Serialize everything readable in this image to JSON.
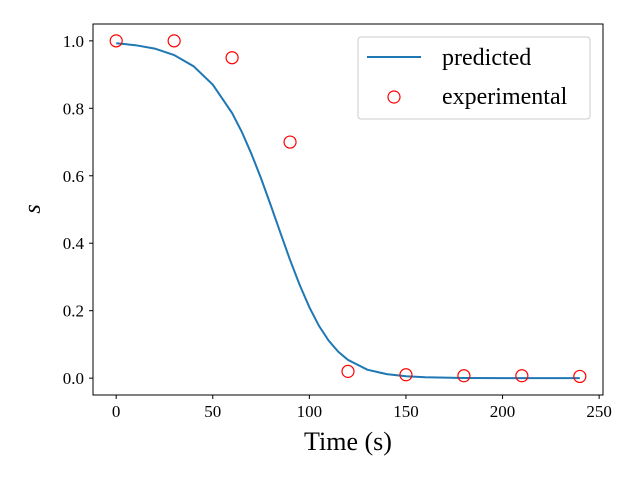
{
  "chart_data": {
    "type": "line",
    "title": "",
    "xlabel": "Time (s)",
    "ylabel": "s",
    "xlim": [
      -12,
      252
    ],
    "ylim": [
      -0.05,
      1.05
    ],
    "xticks": [
      0,
      50,
      100,
      150,
      200,
      250
    ],
    "xtick_labels": [
      "0",
      "50",
      "100",
      "150",
      "200",
      "250"
    ],
    "yticks": [
      0.0,
      0.2,
      0.4,
      0.6,
      0.8,
      1.0
    ],
    "ytick_labels": [
      "0.0",
      "0.2",
      "0.4",
      "0.6",
      "0.8",
      "1.0"
    ],
    "grid": false,
    "legend_position": "top-right",
    "series": [
      {
        "name": "predicted",
        "kind": "line",
        "color": "#1f77b4",
        "x": [
          0,
          10,
          20,
          30,
          40,
          50,
          60,
          65,
          70,
          75,
          80,
          85,
          90,
          95,
          100,
          105,
          110,
          115,
          120,
          130,
          140,
          150,
          160,
          180,
          200,
          220,
          240
        ],
        "y": [
          0.993,
          0.987,
          0.977,
          0.958,
          0.925,
          0.87,
          0.786,
          0.73,
          0.665,
          0.592,
          0.513,
          0.431,
          0.351,
          0.276,
          0.21,
          0.155,
          0.111,
          0.078,
          0.054,
          0.025,
          0.012,
          0.0055,
          0.0026,
          0.0005,
          0.0001,
          0.0,
          0.0
        ]
      },
      {
        "name": "experimental",
        "kind": "scatter",
        "color": "#ff0000",
        "marker": "open-circle",
        "x": [
          0,
          30,
          60,
          90,
          120,
          150,
          180,
          210,
          240
        ],
        "y": [
          1.0,
          1.0,
          0.95,
          0.7,
          0.02,
          0.01,
          0.007,
          0.007,
          0.005
        ]
      }
    ]
  }
}
